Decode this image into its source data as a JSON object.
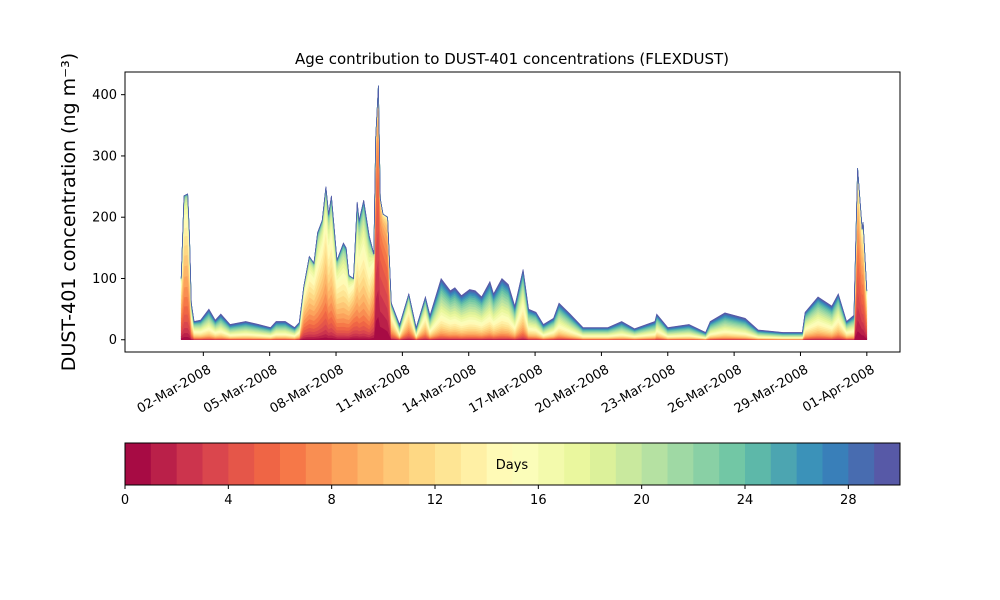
{
  "chart_data": {
    "type": "area",
    "stacked": true,
    "title": "Age contribution to DUST-401 concentrations (FLEXDUST)",
    "xlabel": "",
    "ylabel": "DUST-401 concentration (ng m⁻³)",
    "xlim": [
      "2008-02-27T11:00",
      "2008-04-02T12:00"
    ],
    "ylim": [
      -20,
      437
    ],
    "yticks": [
      0,
      100,
      200,
      300,
      400
    ],
    "xtick_labels": [
      "02-Mar-2008",
      "05-Mar-2008",
      "08-Mar-2008",
      "11-Mar-2008",
      "14-Mar-2008",
      "17-Mar-2008",
      "20-Mar-2008",
      "23-Mar-2008",
      "26-Mar-2008",
      "29-Mar-2008",
      "01-Apr-2008"
    ],
    "xtick_dates": [
      "2008-03-02",
      "2008-03-05",
      "2008-03-08",
      "2008-03-11",
      "2008-03-14",
      "2008-03-17",
      "2008-03-20",
      "2008-03-23",
      "2008-03-26",
      "2008-03-29",
      "2008-04-01"
    ],
    "grid": false,
    "age_classes_days": 30,
    "time": [
      "2008-03-01T00",
      "2008-03-01T03",
      "2008-03-01T07",
      "2008-03-01T09",
      "2008-03-01T11",
      "2008-03-01T14",
      "2008-03-01T21",
      "2008-03-02T06",
      "2008-03-02T13",
      "2008-03-02T19",
      "2008-03-03T05",
      "2008-03-03T22",
      "2008-03-04T12",
      "2008-03-05T01",
      "2008-03-05T07",
      "2008-03-05T17",
      "2008-03-06T03",
      "2008-03-06T08",
      "2008-03-06T13",
      "2008-03-06T19",
      "2008-03-07T00",
      "2008-03-07T04",
      "2008-03-07T09",
      "2008-03-07T13",
      "2008-03-07T16",
      "2008-03-07T19",
      "2008-03-08T01",
      "2008-03-08T08",
      "2008-03-08T11",
      "2008-03-08T14",
      "2008-03-08T19",
      "2008-03-08T23",
      "2008-03-09T01",
      "2008-03-09T06",
      "2008-03-09T12",
      "2008-03-09T17",
      "2008-03-09T19",
      "2008-03-09T22",
      "2008-03-10T00",
      "2008-03-10T03",
      "2008-03-10T08",
      "2008-03-10T12",
      "2008-03-10T21",
      "2008-03-11T07",
      "2008-03-11T15",
      "2008-03-12T01",
      "2008-03-12T06",
      "2008-03-12T18",
      "2008-03-13T04",
      "2008-03-13T09",
      "2008-03-13T16",
      "2008-03-14T01",
      "2008-03-14T07",
      "2008-03-14T14",
      "2008-03-14T23",
      "2008-03-15T03",
      "2008-03-15T12",
      "2008-03-15T19",
      "2008-03-16T02",
      "2008-03-16T11",
      "2008-03-16T17",
      "2008-03-17T01",
      "2008-03-17T09",
      "2008-03-17T20",
      "2008-03-18T02",
      "2008-03-18T14",
      "2008-03-19T04",
      "2008-03-20T07",
      "2008-03-20T22",
      "2008-03-21T12",
      "2008-03-22T10",
      "2008-03-22T12",
      "2008-03-23T00",
      "2008-03-23T23",
      "2008-03-24T17",
      "2008-03-24T22",
      "2008-03-25T14",
      "2008-03-26T12",
      "2008-03-27T02",
      "2008-03-28T05",
      "2008-03-29T02",
      "2008-03-29T05",
      "2008-03-29T19",
      "2008-03-30T10",
      "2008-03-30T17",
      "2008-03-31T02",
      "2008-03-31T10",
      "2008-03-31T14",
      "2008-03-31T19",
      "2008-03-31T20",
      "2008-04-01T00"
    ],
    "total": [
      100,
      235,
      238,
      170,
      60,
      30,
      32,
      50,
      32,
      42,
      25,
      30,
      25,
      20,
      30,
      30,
      20,
      28,
      87,
      136,
      125,
      175,
      195,
      250,
      205,
      235,
      130,
      158,
      150,
      105,
      100,
      225,
      195,
      228,
      170,
      140,
      330,
      415,
      230,
      205,
      200,
      60,
      25,
      75,
      20,
      70,
      40,
      100,
      80,
      85,
      72,
      82,
      80,
      70,
      95,
      75,
      100,
      90,
      55,
      115,
      50,
      45,
      25,
      35,
      60,
      42,
      20,
      20,
      30,
      18,
      30,
      42,
      20,
      25,
      12,
      30,
      44,
      35,
      16,
      12,
      12,
      45,
      70,
      55,
      75,
      30,
      40,
      280,
      180,
      192,
      80
    ],
    "mean_age_days": [
      8,
      9,
      9,
      9,
      12,
      16,
      17,
      18,
      18,
      19,
      20,
      20,
      20,
      20,
      20,
      20,
      19,
      16,
      9,
      10,
      10,
      11,
      10,
      10,
      11,
      11,
      11,
      12,
      12,
      10,
      8,
      12,
      12,
      12,
      12,
      8,
      3,
      3,
      3,
      3,
      4,
      12,
      18,
      12,
      18,
      14,
      18,
      18,
      18,
      18,
      18,
      18,
      18,
      18,
      18,
      18,
      18,
      18,
      18,
      15,
      18,
      18,
      20,
      18,
      18,
      19,
      20,
      20,
      21,
      20,
      20,
      18,
      21,
      21,
      22,
      20,
      20,
      21,
      21,
      21,
      21,
      17,
      17,
      18,
      16,
      17,
      18,
      5,
      6,
      6,
      8
    ],
    "colormap": "Spectral",
    "colormap_anchors": [
      "#9e0142",
      "#d53e4f",
      "#f46d43",
      "#fdae61",
      "#fee08b",
      "#ffffbf",
      "#e6f598",
      "#abdda4",
      "#66c2a5",
      "#3288bd",
      "#5e4fa2"
    ],
    "colorbar": {
      "label": "Days",
      "range": [
        0,
        30
      ],
      "ticks": [
        0,
        4,
        8,
        12,
        16,
        20,
        24,
        28
      ],
      "tick_labels": [
        "0",
        "4",
        "8",
        "12",
        "16",
        "20",
        "24",
        "28"
      ]
    }
  }
}
